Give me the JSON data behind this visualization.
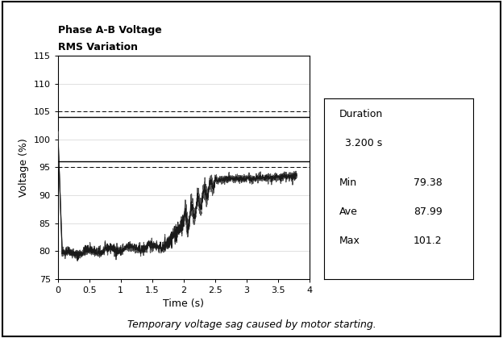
{
  "title_line1": "Phase A-B Voltage",
  "title_line2": "RMS Variation",
  "xlabel": "Time (s)",
  "ylabel": "Voltage (%)",
  "xlim": [
    0,
    4
  ],
  "ylim": [
    75,
    115
  ],
  "xticks": [
    0,
    0.5,
    1,
    1.5,
    2,
    2.5,
    3,
    3.5,
    4
  ],
  "yticks": [
    75,
    80,
    85,
    90,
    95,
    100,
    105,
    110,
    115
  ],
  "hline_solid_1": 96,
  "hline_solid_2": 104,
  "hline_dashed_1": 95,
  "hline_dashed_2": 105,
  "duration_label": "Duration",
  "duration_value": "3.200 s",
  "min_label": "Min",
  "min_value": "79.38",
  "ave_label": "Ave",
  "ave_value": "87.99",
  "max_label": "Max",
  "max_value": "101.2",
  "caption": "Temporary voltage sag caused by motor starting.",
  "line_color": "#1a1a1a",
  "background_color": "#ffffff",
  "grid_color": "#c8c8c8"
}
